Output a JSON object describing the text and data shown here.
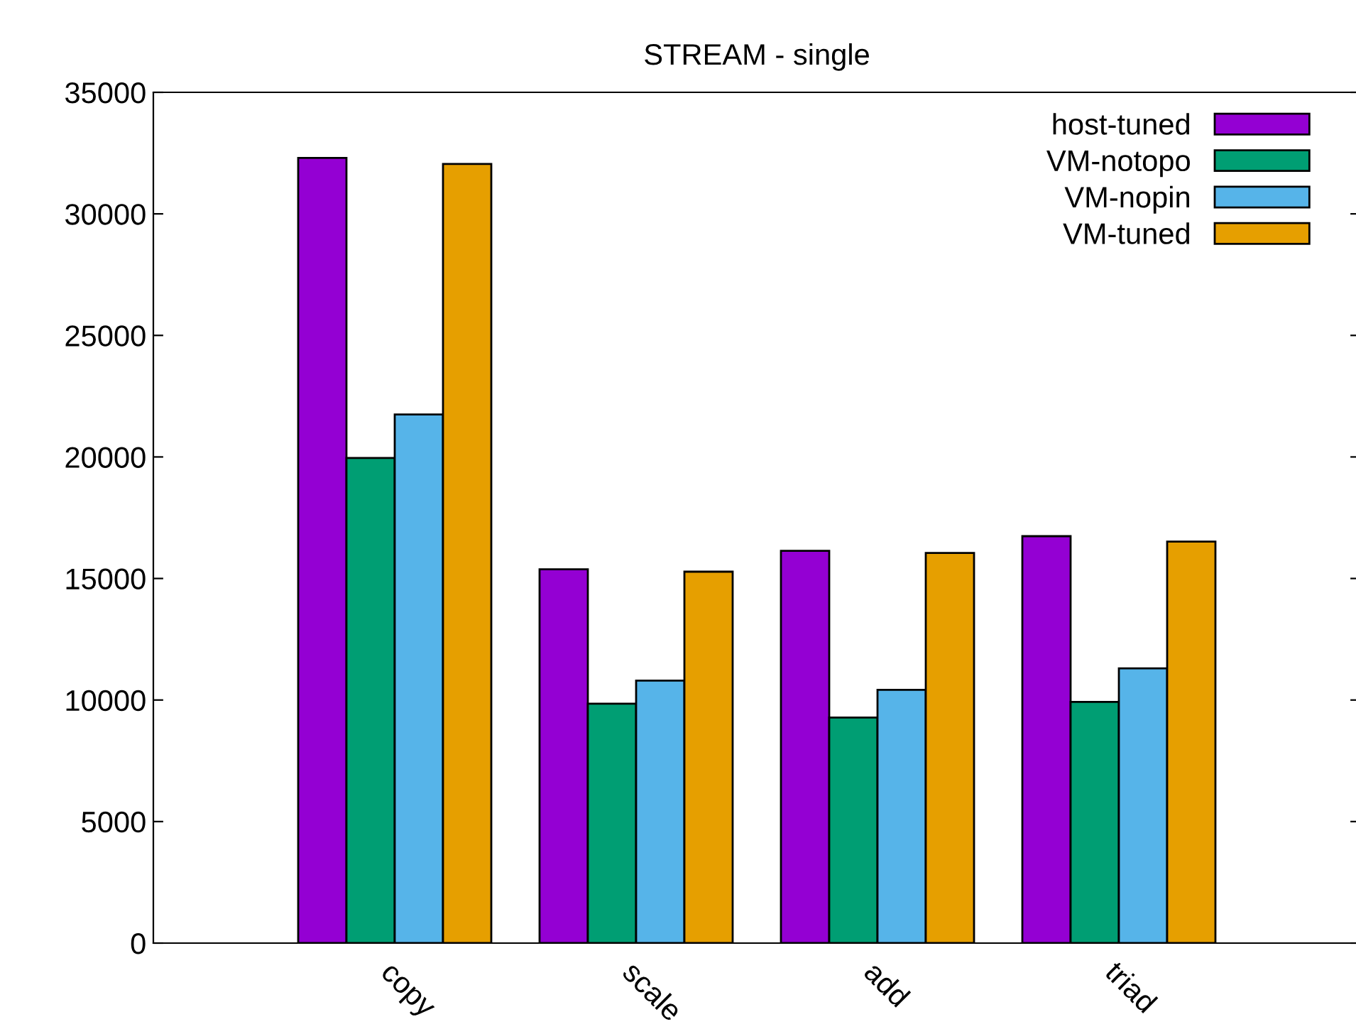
{
  "chart_data": {
    "type": "bar",
    "title": "STREAM - single",
    "categories": [
      "copy",
      "scale",
      "add",
      "triad"
    ],
    "series": [
      {
        "name": "host-tuned",
        "color": "#9400d3",
        "values": [
          32300,
          15380,
          16140,
          16740
        ]
      },
      {
        "name": "VM-notopo",
        "color": "#009e73",
        "values": [
          19960,
          9850,
          9280,
          9920
        ]
      },
      {
        "name": "VM-nopin",
        "color": "#56b4e9",
        "values": [
          21750,
          10800,
          10420,
          11300
        ]
      },
      {
        "name": "VM-tuned",
        "color": "#e69f00",
        "values": [
          32050,
          15280,
          16050,
          16520
        ]
      }
    ],
    "ylim": [
      0,
      35000
    ],
    "yticks": [
      0,
      5000,
      10000,
      15000,
      20000,
      25000,
      30000,
      35000
    ],
    "grid": false,
    "legend": "top right"
  }
}
